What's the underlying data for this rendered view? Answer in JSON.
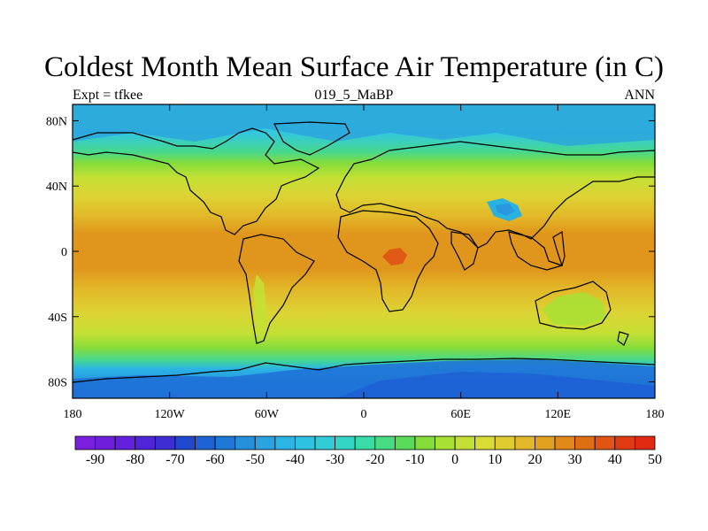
{
  "title": "Coldest Month Mean Surface Air Temperature (in C)",
  "subtitle_left": "Expt = tfkee",
  "subtitle_center": "019_5_MaBP",
  "subtitle_right": "ANN",
  "lat_labels": [
    "80N",
    "40N",
    "0",
    "40S",
    "80S"
  ],
  "lat_values": [
    80,
    40,
    0,
    -40,
    -80
  ],
  "lon_labels": [
    "180",
    "120W",
    "60W",
    "0",
    "60E",
    "120E",
    "180"
  ],
  "lon_values": [
    -180,
    -120,
    -60,
    0,
    60,
    120,
    180
  ],
  "colorbar_labels": [
    "-90",
    "-80",
    "-70",
    "-60",
    "-50",
    "-40",
    "-30",
    "-20",
    "-10",
    "0",
    "10",
    "20",
    "30",
    "40",
    "50"
  ],
  "colorbar_colors": [
    "#7a1ee0",
    "#6f1fdc",
    "#6420dc",
    "#5025d8",
    "#3c2ed2",
    "#1f4ad0",
    "#1d63d6",
    "#1f78d8",
    "#2590dc",
    "#2aa4e0",
    "#2bb4e4",
    "#2ec2e2",
    "#31ccd8",
    "#33d6c4",
    "#39dca6",
    "#45dc84",
    "#5adc5a",
    "#84dc3a",
    "#a8e034",
    "#c4e034",
    "#d8dc34",
    "#e0cc30",
    "#e2b828",
    "#e2a020",
    "#e08818",
    "#e06e14",
    "#e05414",
    "#e03c14",
    "#e02a14"
  ]
}
